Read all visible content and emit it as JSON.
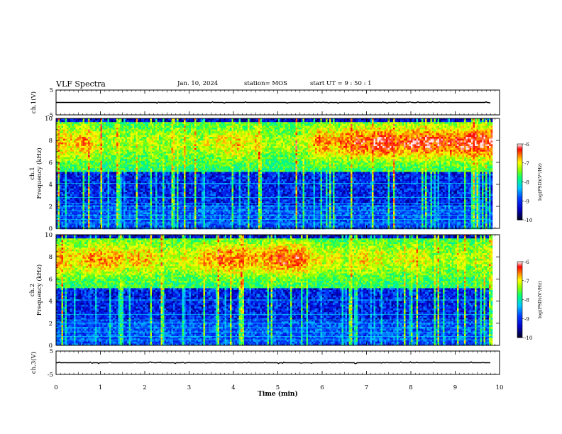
{
  "header": {
    "title": "VLF Spectra",
    "date": "Jan. 10, 2024",
    "station": "station= MOS",
    "start": "start UT =  9 : 50 : 1"
  },
  "chart_data": [
    {
      "type": "line",
      "name": "ch1-waveform",
      "ylabel": "ch.1(V)",
      "ylim": [
        -5,
        5
      ],
      "yticks": [
        "5",
        "-5"
      ],
      "xlim": [
        0,
        10
      ],
      "x": [
        0,
        9.8
      ],
      "y": [
        0,
        0
      ]
    },
    {
      "type": "heatmap",
      "name": "ch1-spectrogram",
      "ylabel": "ch.1\nFrequency (kHz)",
      "ylim": [
        0,
        10
      ],
      "yticks": [
        "0",
        "2",
        "4",
        "6",
        "8",
        "10"
      ],
      "xlim": [
        0,
        10
      ],
      "x_data_end": 9.8,
      "colorbar": {
        "label": "log(PSD)(V²/Hz)",
        "range": [
          -10,
          -6
        ],
        "ticks": [
          "-6",
          "-7",
          "-8",
          "-9",
          "-10"
        ]
      }
    },
    {
      "type": "heatmap",
      "name": "ch2-spectrogram",
      "ylabel": "ch.2\nFrequency (kHz)",
      "ylim": [
        0,
        10
      ],
      "yticks": [
        "0",
        "2",
        "4",
        "6",
        "8",
        "10"
      ],
      "xlim": [
        0,
        10
      ],
      "x_data_end": 9.8,
      "colorbar": {
        "label": "log(PSD)(V²/Hz)",
        "range": [
          -10,
          -6
        ],
        "ticks": [
          "-6",
          "-7",
          "-8",
          "-9",
          "-10"
        ]
      }
    },
    {
      "type": "line",
      "name": "ch3-waveform",
      "ylabel": "ch.3(V)",
      "ylim": [
        -5,
        5
      ],
      "yticks": [
        "5",
        "-5"
      ],
      "xlim": [
        0,
        10
      ],
      "x": [
        0,
        9.8
      ],
      "y": [
        0,
        0
      ]
    }
  ],
  "xaxis": {
    "label": "Time (min)",
    "ticks": [
      "0",
      "1",
      "2",
      "3",
      "4",
      "5",
      "6",
      "7",
      "8",
      "9",
      "10"
    ]
  },
  "colors": {
    "colormap": [
      "#00003a",
      "#0000ff",
      "#00c8ff",
      "#00ff60",
      "#ffff00",
      "#ff0000",
      "#ffffff"
    ]
  }
}
